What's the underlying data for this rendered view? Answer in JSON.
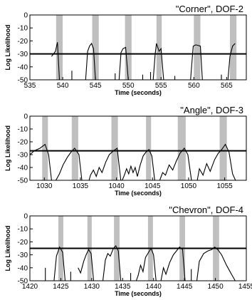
{
  "chart_data": [
    {
      "type": "line",
      "title": "\"Corner\", DOF-2",
      "xlabel": "Time (seconds)",
      "ylabel": "Log Likelihood",
      "xlim": [
        535,
        568
      ],
      "ylim": [
        -50,
        0
      ],
      "xticks": [
        535,
        540,
        545,
        550,
        555,
        560,
        565
      ],
      "yticks": [
        0,
        -10,
        -20,
        -30,
        -40,
        -50
      ],
      "threshold": -30,
      "grid": false,
      "shaded_intervals": [
        [
          539,
          540
        ],
        [
          544.5,
          545.5
        ],
        [
          549.5,
          550.5
        ],
        [
          554.3,
          555.1
        ],
        [
          560,
          561
        ],
        [
          565.5,
          566.5
        ]
      ],
      "series": [
        {
          "x": [
            538.3,
            538.6,
            538.9,
            539.2,
            539.5
          ],
          "y": [
            -32,
            -30,
            -28,
            -21,
            -50
          ]
        },
        {
          "x": [
            543.5,
            543.8,
            544.1,
            544.4,
            544.7,
            545.0
          ],
          "y": [
            -50,
            -28,
            -24,
            -22,
            -26,
            -50
          ]
        },
        {
          "x": [
            548.6,
            548.9,
            549.2,
            549.6,
            550.0
          ],
          "y": [
            -50,
            -29,
            -26,
            -25,
            -50
          ]
        },
        {
          "x": [
            553.8,
            554.1,
            554.3,
            554.7,
            555.0,
            555.4
          ],
          "y": [
            -50,
            -30,
            -22,
            -28,
            -26,
            -50
          ]
        },
        {
          "x": [
            559.5,
            559.9,
            560.3,
            561.0,
            561.3
          ],
          "y": [
            -50,
            -24,
            -23,
            -24,
            -50
          ]
        },
        {
          "x": [
            565.2,
            565.5,
            565.9,
            566.3
          ],
          "y": [
            -50,
            -32,
            -24,
            -22
          ]
        }
      ],
      "spikes": [
        {
          "x": 541.4,
          "y": -43
        },
        {
          "x": 548.0,
          "y": -45
        },
        {
          "x": 552.2,
          "y": -46
        },
        {
          "x": 553.4,
          "y": -44
        },
        {
          "x": 557.1,
          "y": -47
        },
        {
          "x": 564.2,
          "y": -46
        }
      ]
    },
    {
      "type": "line",
      "title": "\"Angle\", DOF-3",
      "xlabel": "Time (seconds)",
      "ylabel": "Log Likelihood",
      "xlim": [
        1028,
        1058
      ],
      "ylim": [
        -50,
        0
      ],
      "xticks": [
        1030,
        1035,
        1040,
        1045,
        1050,
        1055
      ],
      "yticks": [
        0,
        -10,
        -20,
        -30,
        -40,
        -50
      ],
      "threshold": -27,
      "grid": false,
      "shaded_intervals": [
        [
          1029.7,
          1030.5
        ],
        [
          1033.8,
          1034.7
        ],
        [
          1039.3,
          1040.2
        ],
        [
          1044.1,
          1044.8
        ],
        [
          1048.5,
          1049.6
        ],
        [
          1054.3,
          1055.3
        ]
      ],
      "series": [
        {
          "x": [
            1028.0,
            1028.6,
            1029.4,
            1030.1,
            1030.6,
            1031.0
          ],
          "y": [
            -30,
            -27,
            -25,
            -22,
            -30,
            -50
          ]
        },
        {
          "x": [
            1031.6,
            1032.1,
            1032.6,
            1033.2,
            1033.7,
            1034.2,
            1034.8,
            1035.2
          ],
          "y": [
            -50,
            -45,
            -38,
            -32,
            -28,
            -25,
            -30,
            -50
          ]
        },
        {
          "x": [
            1036.2,
            1036.4,
            1036.8,
            1037.2,
            1037.6,
            1038.0,
            1038.5,
            1039.0,
            1039.6,
            1040.1,
            1040.6
          ],
          "y": [
            -50,
            -46,
            -42,
            -47,
            -40,
            -44,
            -36,
            -30,
            -27,
            -25,
            -50
          ]
        },
        {
          "x": [
            1040.8,
            1041.1,
            1041.4,
            1041.7,
            1042.0,
            1042.3,
            1042.6,
            1042.9,
            1043.3,
            1043.7,
            1044.1,
            1044.5,
            1044.9,
            1045.3
          ],
          "y": [
            -50,
            -46,
            -41,
            -45,
            -39,
            -44,
            -40,
            -47,
            -38,
            -31,
            -28,
            -26,
            -31,
            -50
          ]
        },
        {
          "x": [
            1046.0,
            1046.4,
            1046.8,
            1047.3,
            1047.8,
            1048.3,
            1048.8,
            1049.4,
            1049.9,
            1050.4
          ],
          "y": [
            -50,
            -44,
            -46,
            -38,
            -42,
            -35,
            -29,
            -25,
            -30,
            -50
          ]
        },
        {
          "x": [
            1051.2,
            1051.5,
            1052.0,
            1052.5,
            1053.0,
            1053.6,
            1054.1,
            1054.6,
            1055.1,
            1055.6,
            1056.1,
            1056.5
          ],
          "y": [
            -50,
            -41,
            -46,
            -37,
            -43,
            -34,
            -29,
            -26,
            -22,
            -28,
            -45,
            -50
          ]
        }
      ],
      "spikes": []
    },
    {
      "type": "line",
      "title": "\"Chevron\", DOF-4",
      "xlabel": "Time (seconds)",
      "ylabel": "Log Likelihood",
      "xlim": [
        1420,
        1455
      ],
      "ylim": [
        -50,
        0
      ],
      "xticks": [
        1420,
        1425,
        1430,
        1435,
        1440,
        1445,
        1450,
        1455
      ],
      "yticks": [
        0,
        -10,
        -20,
        -30,
        -40,
        -50
      ],
      "threshold": -25,
      "grid": false,
      "shaded_intervals": [
        [
          1424.6,
          1425.4
        ],
        [
          1429.3,
          1430.0
        ],
        [
          1433.6,
          1434.5
        ],
        [
          1439.1,
          1439.9
        ],
        [
          1444.2,
          1445.1
        ],
        [
          1449.6,
          1450.6
        ]
      ],
      "series": [
        {
          "x": [
            1423.9,
            1424.3,
            1424.8,
            1425.3,
            1425.7
          ],
          "y": [
            -50,
            -31,
            -24,
            -28,
            -50
          ]
        },
        {
          "x": [
            1427.8,
            1428.2,
            1428.7,
            1429.1,
            1429.5,
            1429.9,
            1430.3
          ],
          "y": [
            -40,
            -44,
            -35,
            -30,
            -26,
            -29,
            -50
          ]
        },
        {
          "x": [
            1431.8,
            1432.2,
            1432.6,
            1433.0,
            1433.5,
            1433.9,
            1434.3,
            1434.7
          ],
          "y": [
            -50,
            -34,
            -29,
            -31,
            -25,
            -23,
            -27,
            -50
          ]
        },
        {
          "x": [
            1437.2,
            1437.5,
            1437.9,
            1438.3,
            1438.7,
            1439.2,
            1439.6,
            1440.0,
            1440.4
          ],
          "y": [
            -50,
            -46,
            -38,
            -43,
            -32,
            -28,
            -25,
            -30,
            -50
          ]
        },
        {
          "x": [
            1441.2,
            1441.6,
            1442.0,
            1442.6,
            1443.2,
            1443.7,
            1444.2,
            1444.7,
            1445.1
          ],
          "y": [
            -50,
            -40,
            -45,
            -36,
            -30,
            -27,
            -24,
            -26,
            -50
          ]
        },
        {
          "x": [
            1447.0,
            1447.4,
            1448.1,
            1448.8,
            1449.4,
            1449.9,
            1450.4,
            1451.0,
            1451.8,
            1452.6,
            1453.2
          ],
          "y": [
            -50,
            -35,
            -29,
            -27,
            -26,
            -24,
            -26,
            -30,
            -38,
            -45,
            -50
          ]
        }
      ],
      "spikes": [
        {
          "x": 1422.5,
          "y": -40
        },
        {
          "x": 1426.6,
          "y": -43
        },
        {
          "x": 1436.3,
          "y": -44
        },
        {
          "x": 1446.1,
          "y": -41
        }
      ]
    }
  ]
}
